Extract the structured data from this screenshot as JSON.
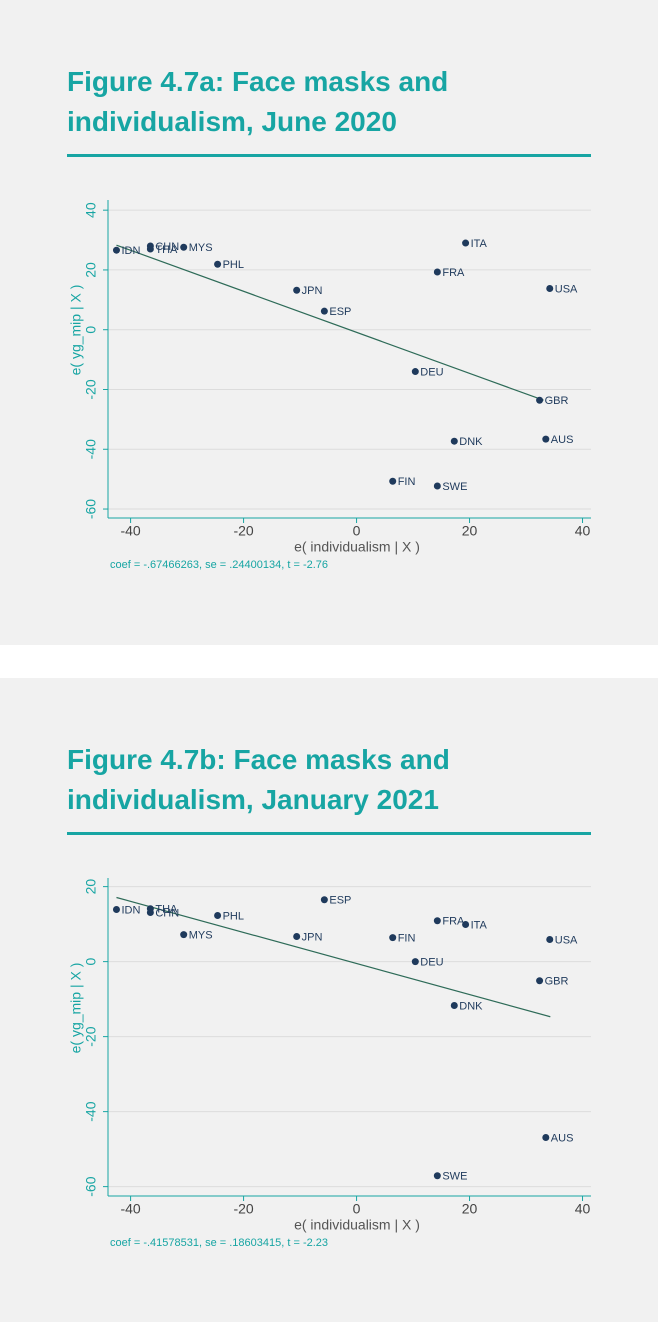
{
  "chart_data": [
    {
      "type": "scatter",
      "title": "Figure 4.7a: Face masks and individualism, June 2020",
      "x_label": "e( individualism | X )",
      "y_label": "e( yg_mip | X )",
      "note": "coef = -.67466263, se = .24400134, t = -2.76",
      "xlim": [
        -44,
        41.5
      ],
      "ylim": [
        -63,
        43.4
      ],
      "xticks": [
        -40,
        -20,
        0,
        20,
        40
      ],
      "yticks": [
        -60,
        -40,
        -20,
        0,
        20,
        40
      ],
      "grid": true,
      "series": [
        {
          "color": "#1f3a5c",
          "labels": [
            "IDN",
            "THA",
            "CHN",
            "MYS",
            "PHL",
            "JPN",
            "ESP",
            "DEU",
            "FIN",
            "SWE",
            "DNK",
            "FRA",
            "ITA",
            "USA",
            "GBR",
            "AUS"
          ],
          "x": [
            -42.5,
            -36.5,
            -36.5,
            -30.6,
            -24.6,
            -10.6,
            -5.7,
            10.4,
            6.4,
            14.3,
            17.3,
            14.3,
            19.3,
            34.2,
            32.4,
            33.5
          ],
          "y": [
            26.6,
            27.0,
            28.0,
            27.6,
            21.9,
            13.2,
            6.2,
            -14.0,
            -50.7,
            -52.3,
            -37.3,
            19.3,
            29.0,
            13.8,
            -23.6,
            -36.6
          ]
        }
      ],
      "fit": {
        "color": "#2e6b58",
        "x": [
          -42.5,
          33.1
        ],
        "y": [
          28.3,
          -23.6
        ]
      }
    },
    {
      "type": "scatter",
      "title": "Figure 4.7b: Face masks and individualism, January 2021",
      "x_label": "e( individualism | X )",
      "y_label": "e( yg_mip | X )",
      "note": "coef = -.41578531, se = .18603415, t = -2.23",
      "xlim": [
        -44,
        41.5
      ],
      "ylim": [
        -62.5,
        22.3
      ],
      "xticks": [
        -40,
        -20,
        0,
        20,
        40
      ],
      "yticks": [
        -60,
        -40,
        -20,
        0,
        20
      ],
      "grid": true,
      "series": [
        {
          "color": "#1f3a5c",
          "labels": [
            "IDN",
            "THA",
            "CHN",
            "MYS",
            "PHL",
            "ESP",
            "JPN",
            "FIN",
            "DEU",
            "FRA",
            "ITA",
            "USA",
            "GBR",
            "DNK",
            "AUS",
            "SWE"
          ],
          "x": [
            -42.5,
            -36.5,
            -36.5,
            -30.6,
            -24.6,
            -5.7,
            -10.6,
            6.4,
            10.4,
            14.3,
            19.3,
            34.2,
            32.4,
            17.3,
            33.5,
            14.3
          ],
          "y": [
            13.9,
            14.1,
            13.1,
            7.2,
            12.3,
            16.5,
            6.7,
            6.4,
            0.0,
            10.9,
            9.9,
            5.9,
            -5.1,
            -11.7,
            -46.9,
            -57.1
          ]
        }
      ],
      "fit": {
        "color": "#2e6b58",
        "x": [
          -42.5,
          34.3
        ],
        "y": [
          17.1,
          -14.7
        ]
      }
    }
  ]
}
